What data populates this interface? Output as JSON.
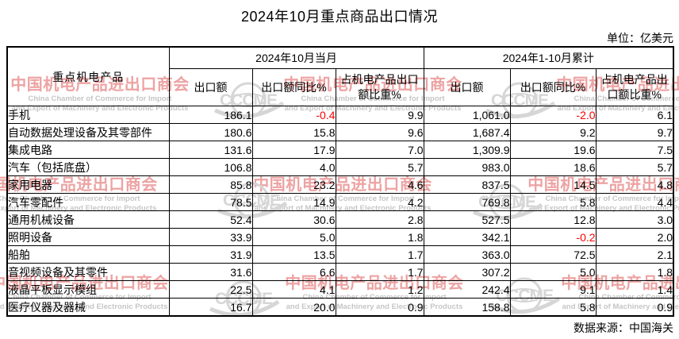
{
  "title": "2024年10月重点商品出口情况",
  "unit_note": "单位：亿美元",
  "source_note": "数据来源：中国海关",
  "table": {
    "product_header": "重点机电产品",
    "groups": [
      {
        "label": "2024年10月当月"
      },
      {
        "label": "2024年1-10月累计"
      }
    ],
    "subheaders": [
      "出口额",
      "出口额同比%",
      "占机电产品出口额比重%",
      "出口额",
      "出口额同比%",
      "占机电产品出口额比重%"
    ],
    "rows": [
      {
        "name": "手机",
        "values": [
          "186.1",
          "-0.4",
          "9.9",
          "1,061.0",
          "-2.0",
          "6.1"
        ]
      },
      {
        "name": "自动数据处理设备及其零部件",
        "values": [
          "180.6",
          "15.8",
          "9.6",
          "1,687.4",
          "9.2",
          "9.7"
        ]
      },
      {
        "name": "集成电路",
        "values": [
          "131.6",
          "17.9",
          "7.0",
          "1,309.9",
          "19.6",
          "7.5"
        ]
      },
      {
        "name": "汽车（包括底盘）",
        "values": [
          "106.8",
          "4.0",
          "5.7",
          "983.0",
          "18.6",
          "5.7"
        ]
      },
      {
        "name": "家用电器",
        "values": [
          "85.8",
          "23.2",
          "4.6",
          "837.5",
          "14.5",
          "4.8"
        ]
      },
      {
        "name": "汽车零配件",
        "values": [
          "78.5",
          "14.9",
          "4.2",
          "769.8",
          "5.8",
          "4.4"
        ]
      },
      {
        "name": "通用机械设备",
        "values": [
          "52.4",
          "30.6",
          "2.8",
          "527.5",
          "12.8",
          "3.0"
        ]
      },
      {
        "name": "照明设备",
        "values": [
          "33.9",
          "5.0",
          "1.8",
          "342.1",
          "-0.2",
          "2.0"
        ]
      },
      {
        "name": "船舶",
        "values": [
          "31.9",
          "13.5",
          "1.7",
          "363.0",
          "72.5",
          "2.1"
        ]
      },
      {
        "name": "音视频设备及其零件",
        "values": [
          "31.6",
          "6.6",
          "1.7",
          "307.2",
          "5.0",
          "1.8"
        ]
      },
      {
        "name": "液晶平板显示模组",
        "values": [
          "22.5",
          "4.1",
          "1.2",
          "242.4",
          "9.1",
          "1.4"
        ]
      },
      {
        "name": "医疗仪器及器械",
        "values": [
          "16.7",
          "20.0",
          "0.9",
          "158.8",
          "5.8",
          "0.9"
        ]
      }
    ],
    "negative_color": "#ff0000"
  },
  "watermark": {
    "cn_text": "中国机电产品进出口商会",
    "en_line1": "China Chamber of Commerce for Import",
    "en_line2": "and Export of Machinery and Electronic Products",
    "logo_text": "CCCME",
    "cn_color": "#eda3a3",
    "en_color": "#c6c6c6",
    "logo_color": "#d6d6d6"
  }
}
